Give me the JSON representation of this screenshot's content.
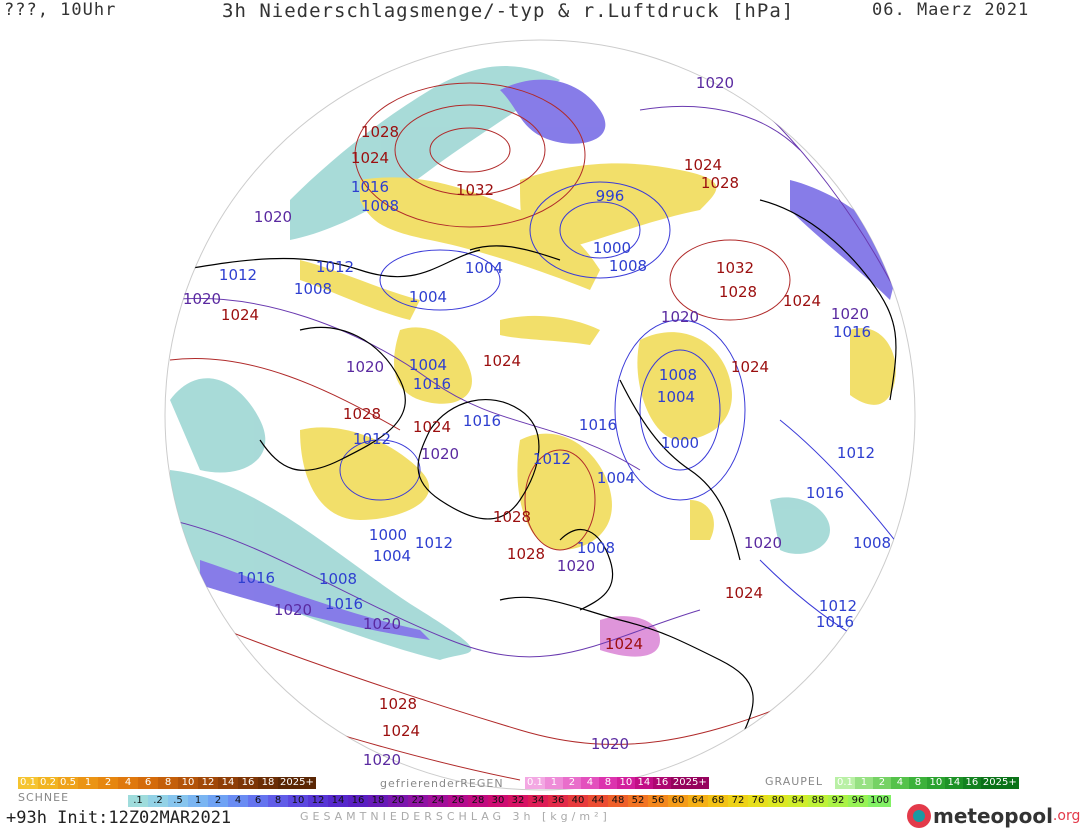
{
  "header": {
    "left": "???, 10Uhr",
    "title": "3h Niederschlagsmenge/-typ & r.Luftdruck [hPa]",
    "date": "06. Maerz 2021"
  },
  "pressure_labels": [
    {
      "text": "1020",
      "color": "#5a2aa0"
    },
    {
      "text": "1028",
      "color": "#9b0f0f"
    },
    {
      "text": "1024",
      "color": "#9b0f0f"
    },
    {
      "text": "1032",
      "color": "#9b0f0f"
    },
    {
      "text": "1016",
      "color": "#2e3fd0"
    },
    {
      "text": "1008",
      "color": "#2e3fd0"
    },
    {
      "text": "996",
      "color": "#2e3fd0"
    },
    {
      "text": "1024",
      "color": "#9b0f0f"
    },
    {
      "text": "1028",
      "color": "#9b0f0f"
    },
    {
      "text": "1020",
      "color": "#5a2aa0"
    },
    {
      "text": "1012",
      "color": "#2e3fd0"
    },
    {
      "text": "1012",
      "color": "#2e3fd0"
    },
    {
      "text": "1004",
      "color": "#2e3fd0"
    },
    {
      "text": "1000",
      "color": "#2e3fd0"
    },
    {
      "text": "1008",
      "color": "#2e3fd0"
    },
    {
      "text": "1032",
      "color": "#9b0f0f"
    },
    {
      "text": "1020",
      "color": "#5a2aa0"
    },
    {
      "text": "1008",
      "color": "#2e3fd0"
    },
    {
      "text": "1004",
      "color": "#2e3fd0"
    },
    {
      "text": "1028",
      "color": "#9b0f0f"
    },
    {
      "text": "1024",
      "color": "#9b0f0f"
    },
    {
      "text": "1020",
      "color": "#5a2aa0"
    },
    {
      "text": "1024",
      "color": "#9b0f0f"
    },
    {
      "text": "1020",
      "color": "#5a2aa0"
    },
    {
      "text": "1016",
      "color": "#2e3fd0"
    },
    {
      "text": "1020",
      "color": "#5a2aa0"
    },
    {
      "text": "1004",
      "color": "#2e3fd0"
    },
    {
      "text": "1016",
      "color": "#2e3fd0"
    },
    {
      "text": "1024",
      "color": "#9b0f0f"
    },
    {
      "text": "1008",
      "color": "#2e3fd0"
    },
    {
      "text": "1024",
      "color": "#9b0f0f"
    },
    {
      "text": "1004",
      "color": "#2e3fd0"
    },
    {
      "text": "1028",
      "color": "#9b0f0f"
    },
    {
      "text": "1024",
      "color": "#9b0f0f"
    },
    {
      "text": "1016",
      "color": "#2e3fd0"
    },
    {
      "text": "1016",
      "color": "#2e3fd0"
    },
    {
      "text": "1012",
      "color": "#2e3fd0"
    },
    {
      "text": "1020",
      "color": "#5a2aa0"
    },
    {
      "text": "1000",
      "color": "#2e3fd0"
    },
    {
      "text": "1012",
      "color": "#2e3fd0"
    },
    {
      "text": "1004",
      "color": "#2e3fd0"
    },
    {
      "text": "1012",
      "color": "#2e3fd0"
    },
    {
      "text": "1016",
      "color": "#2e3fd0"
    },
    {
      "text": "1028",
      "color": "#9b0f0f"
    },
    {
      "text": "1000",
      "color": "#2e3fd0"
    },
    {
      "text": "1004",
      "color": "#2e3fd0"
    },
    {
      "text": "1012",
      "color": "#2e3fd0"
    },
    {
      "text": "1028",
      "color": "#9b0f0f"
    },
    {
      "text": "1008",
      "color": "#2e3fd0"
    },
    {
      "text": "1020",
      "color": "#5a2aa0"
    },
    {
      "text": "1020",
      "color": "#5a2aa0"
    },
    {
      "text": "1008",
      "color": "#2e3fd0"
    },
    {
      "text": "1016",
      "color": "#2e3fd0"
    },
    {
      "text": "1008",
      "color": "#2e3fd0"
    },
    {
      "text": "1016",
      "color": "#2e3fd0"
    },
    {
      "text": "1020",
      "color": "#5a2aa0"
    },
    {
      "text": "1024",
      "color": "#9b0f0f"
    },
    {
      "text": "1020",
      "color": "#5a2aa0"
    },
    {
      "text": "1012",
      "color": "#2e3fd0"
    },
    {
      "text": "1016",
      "color": "#2e3fd0"
    },
    {
      "text": "1024",
      "color": "#9b0f0f"
    },
    {
      "text": "1028",
      "color": "#9b0f0f"
    },
    {
      "text": "1024",
      "color": "#9b0f0f"
    },
    {
      "text": "1020",
      "color": "#5a2aa0"
    },
    {
      "text": "1020",
      "color": "#5a2aa0"
    }
  ],
  "legend": {
    "snow_title": "SCHNEE",
    "snow_values": [
      "0.1",
      "0.2",
      "0.5",
      "1",
      "2",
      "4",
      "6",
      "8",
      "10",
      "12",
      "14",
      "16",
      "18",
      "2025+"
    ],
    "snow_colors": [
      "#f5c430",
      "#f1b420",
      "#eea21a",
      "#eb9414",
      "#e6860f",
      "#df780d",
      "#d46b0b",
      "#c45f0a",
      "#b35309",
      "#a14808",
      "#8f3e07",
      "#7d3506",
      "#6b2d05",
      "#5a2604"
    ],
    "rain_title": "gefrierenderREGEN",
    "rain_values": [
      "0.1",
      "1",
      "2",
      "4",
      "8",
      "10",
      "14",
      "16",
      "2025+"
    ],
    "rain_colors": [
      "#f3a8e3",
      "#ee8cd8",
      "#e96ecb",
      "#e350bd",
      "#dc33ae",
      "#d21f9c",
      "#c20e86",
      "#ae0671",
      "#96025d"
    ],
    "graupel_title": "GRAUPEL",
    "graupel_values": [
      "0.1",
      "1",
      "2",
      "4",
      "8",
      "10",
      "14",
      "16",
      "2025+"
    ],
    "graupel_colors": [
      "#b9f0a5",
      "#97e183",
      "#76d265",
      "#55c24a",
      "#3cb23a",
      "#2ba22f",
      "#1d9226",
      "#12821f",
      "#0a7218"
    ],
    "total_values": [
      ".1",
      ".2",
      ".5",
      "1",
      "2",
      "4",
      "6",
      "8",
      "10",
      "12",
      "14",
      "16",
      "18",
      "20",
      "22",
      "24",
      "26",
      "28",
      "30",
      "32",
      "34",
      "36",
      "40",
      "44",
      "48",
      "52",
      "56",
      "60",
      "64",
      "68",
      "72",
      "76",
      "80",
      "84",
      "88",
      "92",
      "96",
      "100"
    ],
    "total_colors": [
      "#9fdcdc",
      "#93d2e6",
      "#87c5ee",
      "#7ab5f2",
      "#6fa2f4",
      "#6a8cf3",
      "#6574ef",
      "#615de8",
      "#5c48e0",
      "#5836d6",
      "#5628cc",
      "#5a1fc2",
      "#681ab8",
      "#7c16ae",
      "#9012a4",
      "#a30f9a",
      "#b50c8e",
      "#c20b80",
      "#ce0c72",
      "#d71264",
      "#de1d56",
      "#e32b49",
      "#e83b3d",
      "#ec4d33",
      "#ef602a",
      "#f27423",
      "#f4881d",
      "#f59c19",
      "#f5b016",
      "#f3c215",
      "#eed217",
      "#e7df1c",
      "#dce823",
      "#cfee2c",
      "#bef238",
      "#abf346",
      "#97f355",
      "#82f165"
    ],
    "total_title": "GESAMTNIEDERSCHLAG 3h [kg/m²]"
  },
  "footer": {
    "init": "+93h Init:12Z02MAR2021",
    "logo_main": "meteopool",
    "logo_tld": ".org"
  },
  "colors": {
    "snow_yellow": "#f1dc5a",
    "precip_cyan": "#9fd7d4",
    "precip_purple": "#7a6ee6",
    "precip_magenta": "#dc8ad7",
    "isobar_high": "#b02a2a",
    "isobar_low": "#3a3ad8",
    "isobar_mid": "#6a3ab0",
    "coast": "#000000"
  }
}
